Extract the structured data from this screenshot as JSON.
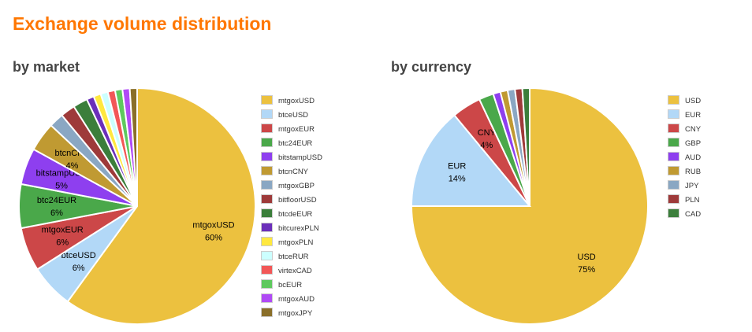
{
  "title": "Exchange volume distribution",
  "chart_data": [
    {
      "type": "pie",
      "title": "by market",
      "labels": [
        "mtgoxUSD",
        "btceUSD",
        "mtgoxEUR",
        "btc24EUR",
        "bitstampUSD",
        "btcnCNY",
        "mtgoxGBP",
        "bitfloorUSD",
        "btcdeEUR",
        "bitcurexPLN",
        "mtgoxPLN",
        "btceRUR",
        "virtexCAD",
        "bcEUR",
        "mtgoxAUD",
        "mtgoxJPY"
      ],
      "values": [
        60,
        6,
        6,
        6,
        5,
        4,
        2,
        2,
        2,
        1,
        1,
        1,
        1,
        1,
        1,
        1
      ],
      "show_label": [
        true,
        true,
        true,
        true,
        true,
        true,
        false,
        false,
        false,
        false,
        false,
        false,
        false,
        false,
        false,
        false
      ],
      "colors": [
        "#ecc13f",
        "#b2d8f7",
        "#cc4748",
        "#4aa84a",
        "#8e3fef",
        "#c09a32",
        "#8aa7c3",
        "#9e3a3a",
        "#3b7e3b",
        "#6b2fba",
        "#ffe83f",
        "#ccffff",
        "#f25757",
        "#5ec95e",
        "#b04af5",
        "#8a6f29"
      ],
      "legend": "right"
    },
    {
      "type": "pie",
      "title": "by currency",
      "labels": [
        "USD",
        "EUR",
        "CNY",
        "GBP",
        "AUD",
        "RUB",
        "JPY",
        "PLN",
        "CAD"
      ],
      "values": [
        75,
        14,
        4,
        2,
        1,
        1,
        1,
        1,
        1
      ],
      "show_label": [
        true,
        true,
        true,
        false,
        false,
        false,
        false,
        false,
        false
      ],
      "colors": [
        "#ecc13f",
        "#b2d8f7",
        "#cc4748",
        "#4aa84a",
        "#8e3fef",
        "#c09a32",
        "#8aa7c3",
        "#9e3a3a",
        "#3b7e3b"
      ],
      "legend": "right"
    }
  ]
}
